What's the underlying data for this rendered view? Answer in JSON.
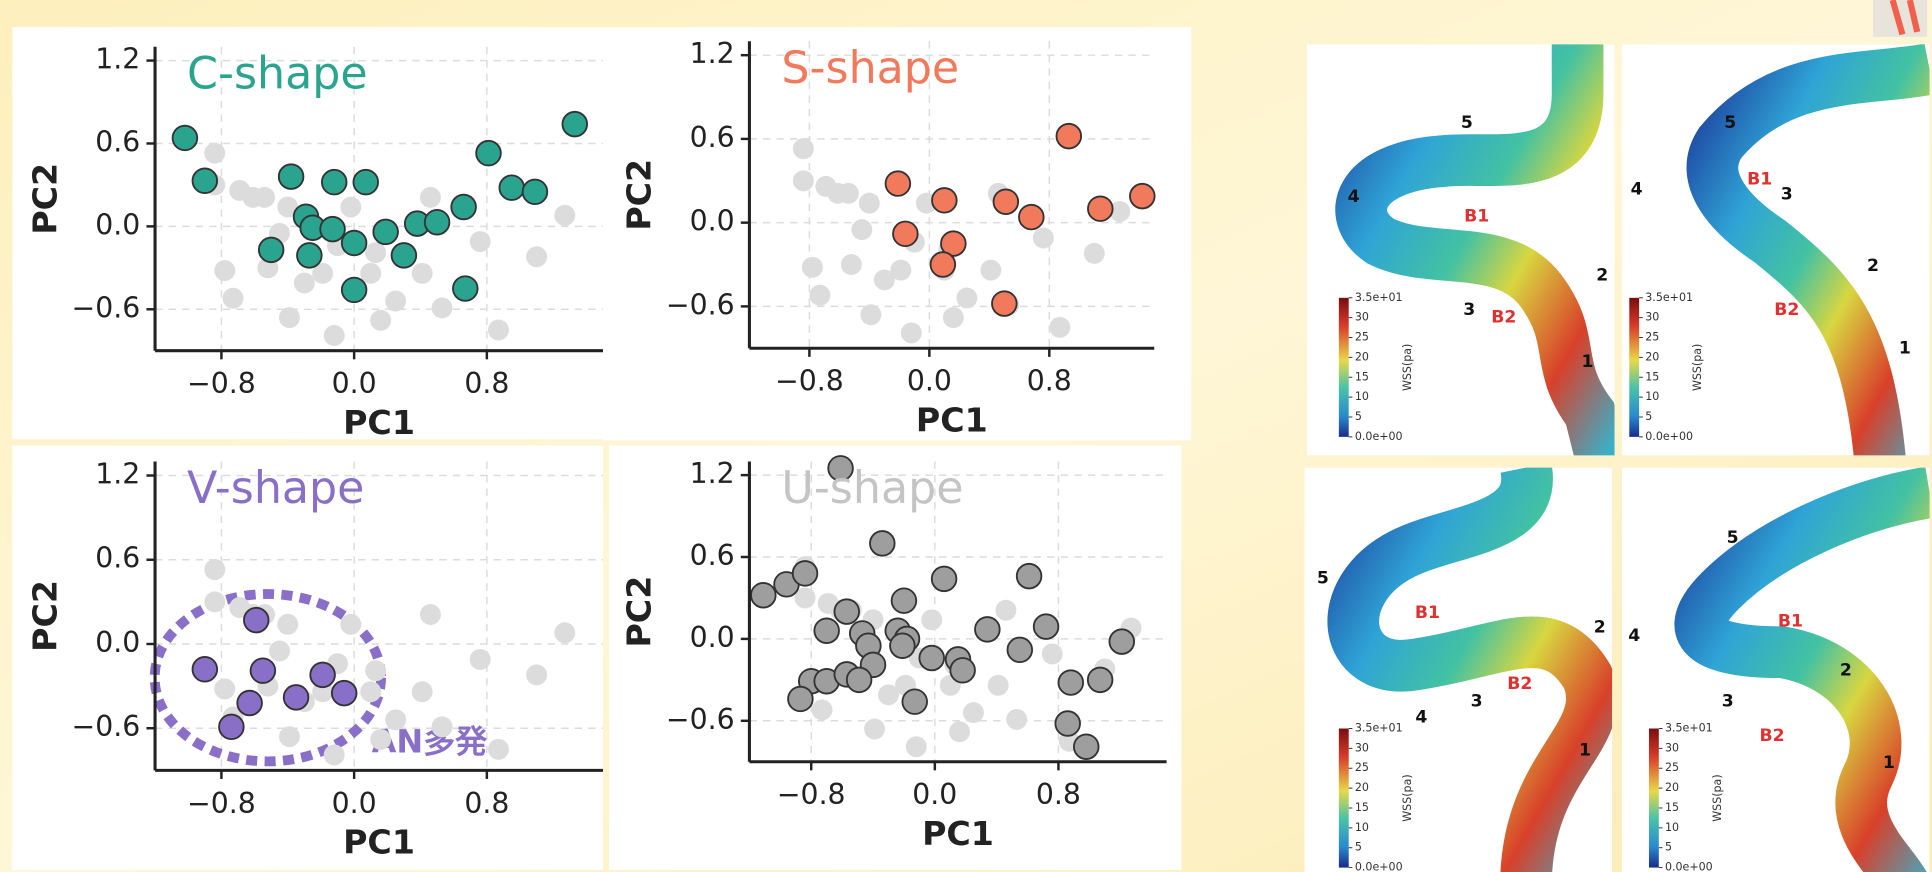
{
  "chart_data": [
    {
      "type": "scatter",
      "title": "C-shape",
      "title_color": "#2aa38f",
      "xlabel": "PC1",
      "ylabel": "PC2",
      "xlim": [
        -1.2,
        1.5
      ],
      "ylim": [
        -0.9,
        1.3
      ],
      "xticks": [
        {
          "value": -0.8,
          "label": "−0.8"
        },
        {
          "value": 0,
          "label": "0.0"
        },
        0.8
      ],
      "yticks": [
        1.2,
        0.6,
        {
          "value": 0,
          "label": "0.0"
        },
        {
          "value": -0.6,
          "label": "−0.6"
        }
      ],
      "grid": true,
      "series": [
        {
          "color": "#dcdcdc",
          "x": [
            -0.78,
            -0.69,
            -0.84,
            -0.61,
            -0.73,
            -0.52,
            -0.45,
            -0.3,
            -0.19,
            -0.39,
            -0.12,
            0.1,
            0.16,
            0.25,
            0.41,
            0.53,
            0.76,
            0.87,
            1.1,
            1.27,
            -0.84,
            -0.54,
            -0.4,
            -0.02,
            0.13,
            0.46,
            -0.1
          ],
          "y": [
            -0.32,
            0.26,
            0.3,
            0.21,
            -0.52,
            -0.3,
            -0.05,
            -0.41,
            -0.34,
            -0.66,
            -0.79,
            -0.34,
            -0.68,
            -0.54,
            -0.34,
            -0.59,
            -0.11,
            -0.75,
            -0.22,
            0.08,
            0.53,
            0.21,
            0.14,
            0.14,
            -0.19,
            0.21,
            -0.14
          ]
        },
        {
          "color": "#2aa38f",
          "edgecolor": "#333333",
          "x": [
            -1.02,
            -0.9,
            -0.38,
            -0.12,
            0.07,
            -0.29,
            -0.25,
            -0.13,
            -0.27,
            -0.5,
            0,
            0.19,
            0.3,
            0.38,
            0.5,
            0.66,
            0.67,
            0,
            0.81,
            0.95,
            1.09,
            1.33
          ],
          "y": [
            0.64,
            0.33,
            0.36,
            0.32,
            0.32,
            0.07,
            -0.01,
            -0.02,
            -0.21,
            -0.17,
            -0.12,
            -0.04,
            -0.21,
            0.02,
            0.03,
            0.14,
            -0.45,
            -0.46,
            0.53,
            0.28,
            0.25,
            0.74
          ]
        }
      ]
    },
    {
      "type": "scatter",
      "title": "S-shape",
      "title_color": "#f27a5c",
      "xlabel": "PC1",
      "ylabel": "PC2",
      "xlim": [
        -1.2,
        1.5
      ],
      "ylim": [
        -0.9,
        1.3
      ],
      "xticks": [
        {
          "value": -0.8,
          "label": "−0.8"
        },
        {
          "value": 0,
          "label": "0.0"
        },
        0.8
      ],
      "yticks": [
        1.2,
        0.6,
        {
          "value": 0,
          "label": "0.0"
        },
        {
          "value": -0.6,
          "label": "−0.6"
        }
      ],
      "grid": true,
      "series": [
        {
          "color": "#dcdcdc",
          "x": [
            -0.78,
            -0.69,
            -0.84,
            -0.61,
            -0.73,
            -0.52,
            -0.45,
            -0.3,
            -0.19,
            -0.39,
            -0.12,
            0.1,
            0.16,
            0.25,
            0.41,
            0.53,
            0.76,
            0.87,
            1.1,
            1.27,
            -0.84,
            -0.54,
            -0.4,
            -0.02,
            0.13,
            0.46,
            -0.1
          ],
          "y": [
            -0.32,
            0.26,
            0.3,
            0.21,
            -0.52,
            -0.3,
            -0.05,
            -0.41,
            -0.34,
            -0.66,
            -0.79,
            -0.34,
            -0.68,
            -0.54,
            -0.34,
            -0.59,
            -0.11,
            -0.75,
            -0.22,
            0.08,
            0.53,
            0.21,
            0.14,
            0.14,
            -0.19,
            0.21,
            -0.14
          ]
        },
        {
          "color": "#f27a5c",
          "edgecolor": "#333333",
          "x": [
            -0.21,
            -0.16,
            0.1,
            0.16,
            0.09,
            0.51,
            0.68,
            0.93,
            1.14,
            1.42,
            0.5
          ],
          "y": [
            0.28,
            -0.08,
            0.16,
            -0.15,
            -0.3,
            0.15,
            0.04,
            0.62,
            0.1,
            0.19,
            -0.58
          ]
        }
      ]
    },
    {
      "type": "scatter",
      "title": "V-shape",
      "title_color": "#8a6fc8",
      "xlabel": "PC1",
      "ylabel": "PC2",
      "xlim": [
        -1.2,
        1.5
      ],
      "ylim": [
        -0.9,
        1.3
      ],
      "xticks": [
        {
          "value": -0.8,
          "label": "−0.8"
        },
        {
          "value": 0,
          "label": "0.0"
        },
        0.8
      ],
      "yticks": [
        1.2,
        0.6,
        {
          "value": 0,
          "label": "0.0"
        },
        {
          "value": -0.6,
          "label": "−0.6"
        }
      ],
      "grid": true,
      "annotation": "AN多発",
      "annotation_color": "#8a6fc8",
      "series": [
        {
          "color": "#dcdcdc",
          "x": [
            -0.78,
            -0.69,
            -0.84,
            -0.61,
            -0.73,
            -0.52,
            -0.45,
            -0.3,
            -0.19,
            -0.39,
            -0.12,
            0.1,
            0.16,
            0.25,
            0.41,
            0.53,
            0.76,
            0.87,
            1.1,
            1.27,
            -0.84,
            -0.54,
            -0.4,
            -0.02,
            0.13,
            0.46,
            -0.1
          ],
          "y": [
            -0.32,
            0.26,
            0.3,
            0.21,
            -0.52,
            -0.3,
            -0.05,
            -0.41,
            -0.34,
            -0.66,
            -0.79,
            -0.34,
            -0.68,
            -0.54,
            -0.34,
            -0.59,
            -0.11,
            -0.75,
            -0.22,
            0.08,
            0.53,
            0.21,
            0.14,
            0.14,
            -0.19,
            0.21,
            -0.14
          ]
        },
        {
          "color": "#8a6fc8",
          "edgecolor": "#333333",
          "x": [
            -0.59,
            -0.9,
            -0.55,
            -0.19,
            -0.06,
            -0.35,
            -0.63,
            -0.74
          ],
          "y": [
            0.17,
            -0.18,
            -0.19,
            -0.22,
            -0.35,
            -0.38,
            -0.42,
            -0.59
          ]
        }
      ]
    },
    {
      "type": "scatter",
      "title": "U-shape",
      "title_color": "#c4c4c4",
      "xlabel": "PC1",
      "ylabel": "PC2",
      "xlim": [
        -1.2,
        1.5
      ],
      "ylim": [
        -0.9,
        1.3
      ],
      "xticks": [
        {
          "value": -0.8,
          "label": "−0.8"
        },
        {
          "value": 0,
          "label": "0.0"
        },
        0.8
      ],
      "yticks": [
        1.2,
        0.6,
        {
          "value": 0,
          "label": "0.0"
        },
        {
          "value": -0.6,
          "label": "−0.6"
        }
      ],
      "grid": true,
      "series": [
        {
          "color": "#dcdcdc",
          "x": [
            -0.78,
            -0.69,
            -0.84,
            -0.61,
            -0.73,
            -0.52,
            -0.45,
            -0.3,
            -0.19,
            -0.39,
            -0.12,
            0.1,
            0.16,
            0.25,
            0.41,
            0.53,
            0.76,
            0.87,
            1.1,
            1.27,
            -0.84,
            -0.54,
            -0.4,
            -0.02,
            0.13,
            0.46,
            -0.1
          ],
          "y": [
            -0.32,
            0.26,
            0.3,
            0.21,
            -0.52,
            -0.3,
            -0.05,
            -0.41,
            -0.34,
            -0.66,
            -0.79,
            -0.34,
            -0.68,
            -0.54,
            -0.34,
            -0.59,
            -0.11,
            -0.75,
            -0.22,
            0.08,
            0.53,
            0.21,
            0.14,
            0.14,
            -0.19,
            0.21,
            -0.14
          ]
        },
        {
          "color": "#9e9e9e",
          "edgecolor": "#333333",
          "x": [
            -0.61,
            -1.11,
            -0.96,
            -0.84,
            -0.34,
            -0.57,
            -0.7,
            -0.47,
            -0.43,
            -0.2,
            -0.24,
            -0.18,
            -0.4,
            -0.8,
            -0.87,
            -0.7,
            -0.57,
            -0.49,
            0.06,
            -0.21,
            -0.02,
            -0.13,
            0.15,
            0.18,
            0.34,
            0.55,
            0.61,
            0.72,
            0.88,
            1.07,
            1.21,
            0.86,
            0.98
          ],
          "y": [
            1.25,
            0.32,
            0.4,
            0.48,
            0.7,
            0.2,
            0.06,
            0.04,
            -0.05,
            0.28,
            0.06,
            0,
            -0.19,
            -0.31,
            -0.44,
            -0.31,
            -0.26,
            -0.3,
            0.44,
            -0.05,
            -0.14,
            -0.46,
            -0.15,
            -0.23,
            0.07,
            -0.08,
            0.46,
            0.09,
            -0.32,
            -0.3,
            -0.02,
            -0.62,
            -0.79
          ]
        }
      ]
    }
  ],
  "cfd_panels": [
    {
      "markers": [
        "1",
        "2",
        "3",
        "4",
        "5"
      ],
      "branches": [
        "B1",
        "B2"
      ],
      "colorbar": {
        "label": "WSS(pa)",
        "ticks": [
          {
            "value": 35,
            "label": "3.5e+01"
          },
          30,
          25,
          20,
          15,
          10,
          5,
          {
            "value": 0,
            "label": "0.0e+00"
          }
        ]
      }
    },
    {
      "markers": [
        "1",
        "2",
        "3",
        "4",
        "5"
      ],
      "branches": [
        "B1",
        "B2"
      ],
      "colorbar": {
        "label": "WSS(pa)",
        "ticks": [
          {
            "value": 35,
            "label": "3.5e+01"
          },
          30,
          25,
          20,
          15,
          10,
          5,
          {
            "value": 0,
            "label": "0.0e+00"
          }
        ]
      }
    },
    {
      "markers": [
        "1",
        "2",
        "3",
        "4",
        "5"
      ],
      "branches": [
        "B1",
        "B2"
      ],
      "colorbar": {
        "label": "WSS(pa)",
        "ticks": [
          {
            "value": 35,
            "label": "3.5e+01"
          },
          30,
          25,
          20,
          15,
          10,
          5,
          {
            "value": 0,
            "label": "0.0e+00"
          }
        ]
      }
    },
    {
      "markers": [
        "1",
        "2",
        "3",
        "4",
        "5"
      ],
      "branches": [
        "B1",
        "B2"
      ],
      "colorbar": {
        "label": "WSS(pa)",
        "ticks": [
          {
            "value": 35,
            "label": "3.5e+01"
          },
          30,
          25,
          20,
          15,
          10,
          5,
          {
            "value": 0,
            "label": "0.0e+00"
          }
        ]
      }
    }
  ]
}
